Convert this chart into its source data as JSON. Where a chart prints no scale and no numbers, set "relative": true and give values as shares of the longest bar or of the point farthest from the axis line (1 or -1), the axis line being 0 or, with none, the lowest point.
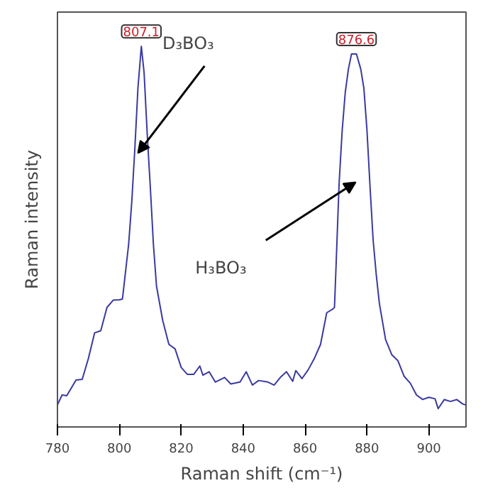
{
  "chart_data": {
    "type": "line",
    "xlabel": "Raman shift (cm⁻¹)",
    "ylabel": "Raman intensity",
    "relative": true,
    "xlim": [
      780,
      912
    ],
    "xticks": [
      780,
      800,
      820,
      840,
      860,
      880,
      900
    ],
    "grid": false,
    "marker": "none",
    "line_style": "solid",
    "series": [
      {
        "color": "#3a3aa0",
        "x": [
          780,
          781.5,
          783,
          786,
          788,
          790,
          792,
          794,
          796,
          798,
          800,
          801,
          803,
          804,
          805,
          806,
          807.1,
          808,
          809,
          810,
          811,
          812,
          814,
          816,
          818,
          820,
          822,
          824,
          826,
          827,
          829,
          831,
          834,
          836,
          839,
          841,
          843,
          845,
          848,
          850,
          852,
          854,
          856,
          857,
          859,
          861,
          863,
          865,
          867,
          869,
          869.5,
          870,
          871,
          872,
          873,
          874,
          875,
          876.6,
          878,
          879,
          880,
          881,
          882,
          883,
          884,
          886,
          888,
          890,
          892,
          894,
          896,
          898,
          900,
          902,
          903,
          905,
          907,
          909,
          911,
          912
        ],
        "values": [
          0.058,
          0.084,
          0.082,
          0.123,
          0.125,
          0.18,
          0.247,
          0.253,
          0.314,
          0.333,
          0.334,
          0.336,
          0.48,
          0.59,
          0.73,
          0.89,
          1.0,
          0.93,
          0.77,
          0.63,
          0.48,
          0.37,
          0.28,
          0.217,
          0.205,
          0.156,
          0.138,
          0.138,
          0.16,
          0.136,
          0.145,
          0.118,
          0.13,
          0.113,
          0.118,
          0.145,
          0.11,
          0.122,
          0.118,
          0.11,
          0.13,
          0.145,
          0.12,
          0.148,
          0.127,
          0.15,
          0.18,
          0.217,
          0.3,
          0.31,
          0.314,
          0.42,
          0.64,
          0.78,
          0.88,
          0.94,
          0.98,
          0.98,
          0.94,
          0.89,
          0.78,
          0.63,
          0.49,
          0.4,
          0.325,
          0.23,
          0.19,
          0.174,
          0.133,
          0.115,
          0.084,
          0.072,
          0.078,
          0.074,
          0.048,
          0.072,
          0.067,
          0.072,
          0.06,
          0.058
        ]
      }
    ],
    "annotations": [
      {
        "text": "807.1",
        "x": 807.1,
        "y": 1.0
      },
      {
        "text": "876.6",
        "x": 876.6,
        "y": 0.98
      },
      "D₃BO₃",
      "H₃BO₃"
    ]
  }
}
